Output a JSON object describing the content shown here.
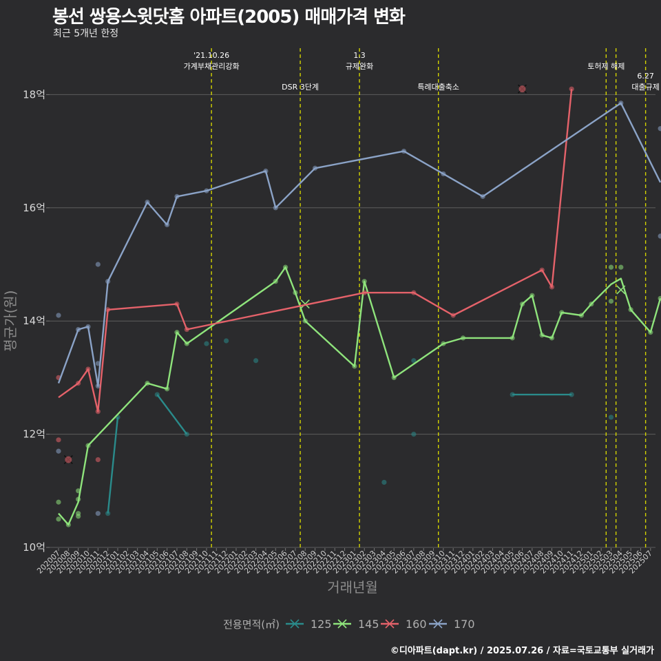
{
  "title": "봉선 쌍용스윗닷홈 아파트(2005) 매매가격 변화",
  "subtitle": "최근 5개년 한정",
  "caption": "©디아파트(dapt.kr) / 2025.07.26 / 자료=국토교통부 실거래가",
  "chart_data": {
    "type": "line",
    "xlabel": "거래년월",
    "ylabel": "평균가(원)",
    "ylim": [
      10,
      18.8
    ],
    "y_unit": "억",
    "y_ticks": [
      {
        "value": 10,
        "label": "10억"
      },
      {
        "value": 12,
        "label": "12억"
      },
      {
        "value": 14,
        "label": "14억"
      },
      {
        "value": 16,
        "label": "16억"
      },
      {
        "value": 18,
        "label": "18억"
      }
    ],
    "x_categories": [
      "202007",
      "202008",
      "202009",
      "202010",
      "202011",
      "202012",
      "202101",
      "202102",
      "202103",
      "202104",
      "202105",
      "202106",
      "202107",
      "202108",
      "202109",
      "202110",
      "202111",
      "202112",
      "202201",
      "202202",
      "202203",
      "202204",
      "202205",
      "202206",
      "202207",
      "202208",
      "202209",
      "202210",
      "202211",
      "202212",
      "202301",
      "202302",
      "202303",
      "202304",
      "202305",
      "202306",
      "202307",
      "202308",
      "202309",
      "202310",
      "202311",
      "202312",
      "202401",
      "202402",
      "202403",
      "202404",
      "202405",
      "202406",
      "202407",
      "202408",
      "202409",
      "202410",
      "202411",
      "202412",
      "202501",
      "202502",
      "202503",
      "202504",
      "202505",
      "202506",
      "202507"
    ],
    "grid": true,
    "legend": {
      "title": "전용면적(㎡)",
      "position": "bottom"
    },
    "events": [
      {
        "x": 15.5,
        "label": "'21.10.26\n가계부채관리강화",
        "row": 0
      },
      {
        "x": 24.5,
        "label": "DSR 3단계",
        "row": 2
      },
      {
        "x": 30.5,
        "label": "1.3\n규제완화",
        "row": 0
      },
      {
        "x": 38.5,
        "label": "특례대출축소",
        "row": 2
      },
      {
        "x": 55.5,
        "label": "토허제 해제",
        "row": 1
      },
      {
        "x": 56.5,
        "label": "",
        "row": 1
      },
      {
        "x": 59.5,
        "label": "6.27\n대출규제",
        "row": 3
      }
    ],
    "series": [
      {
        "name": "125",
        "color": "#2a8b8b",
        "line": [
          [
            5.0,
            10.6
          ],
          [
            6.0,
            12.3
          ]
        ],
        "line2": [
          [
            10.0,
            12.7
          ],
          [
            13.0,
            12.0
          ]
        ],
        "line3": [
          [
            46.0,
            12.7
          ],
          [
            52.0,
            12.7
          ]
        ],
        "points": [
          [
            5.0,
            10.6
          ],
          [
            6.0,
            12.3
          ],
          [
            10.0,
            12.7
          ],
          [
            13.0,
            12.0
          ],
          [
            15.0,
            13.6
          ],
          [
            17.0,
            13.65
          ],
          [
            20.0,
            13.3
          ],
          [
            33.0,
            11.15
          ],
          [
            36.0,
            13.3
          ],
          [
            36.0,
            12.0
          ],
          [
            46.0,
            12.7
          ],
          [
            52.0,
            12.7
          ],
          [
            56.0,
            12.3
          ]
        ],
        "crosses": []
      },
      {
        "name": "145",
        "color": "#8fe47c",
        "line": [
          [
            0.0,
            10.6
          ],
          [
            1.0,
            10.4
          ],
          [
            2.0,
            10.8
          ],
          [
            3.0,
            11.8
          ],
          [
            9.0,
            12.9
          ],
          [
            11.0,
            12.8
          ],
          [
            12.0,
            13.8
          ],
          [
            13.0,
            13.6
          ],
          [
            22.0,
            14.7
          ],
          [
            23.0,
            14.95
          ],
          [
            24.0,
            14.5
          ],
          [
            25.0,
            14.0
          ],
          [
            30.0,
            13.2
          ],
          [
            31.0,
            14.7
          ],
          [
            34.0,
            13.0
          ],
          [
            39.0,
            13.6
          ],
          [
            41.0,
            13.7
          ],
          [
            46.0,
            13.7
          ],
          [
            47.0,
            14.3
          ],
          [
            48.0,
            14.45
          ],
          [
            49.0,
            13.75
          ],
          [
            50.0,
            13.7
          ],
          [
            51.0,
            14.15
          ],
          [
            53.0,
            14.1
          ],
          [
            54.0,
            14.3
          ],
          [
            56.0,
            14.65
          ],
          [
            57.0,
            14.75
          ],
          [
            58.0,
            14.2
          ],
          [
            60.0,
            13.8
          ],
          [
            61.0,
            14.4
          ]
        ],
        "points": [
          [
            0.0,
            10.8
          ],
          [
            0.0,
            10.5
          ],
          [
            1.0,
            10.4
          ],
          [
            2.0,
            10.6
          ],
          [
            2.0,
            10.85
          ],
          [
            2.0,
            11.0
          ],
          [
            2.0,
            10.55
          ],
          [
            3.0,
            11.8
          ],
          [
            9.0,
            12.9
          ],
          [
            11.0,
            12.8
          ],
          [
            12.0,
            13.8
          ],
          [
            13.0,
            13.6
          ],
          [
            22.0,
            14.7
          ],
          [
            23.0,
            14.95
          ],
          [
            24.0,
            14.5
          ],
          [
            25.0,
            14.0
          ],
          [
            30.0,
            13.2
          ],
          [
            31.0,
            14.7
          ],
          [
            34.0,
            13.0
          ],
          [
            39.0,
            13.6
          ],
          [
            41.0,
            13.7
          ],
          [
            46.0,
            13.7
          ],
          [
            47.0,
            14.3
          ],
          [
            48.0,
            14.45
          ],
          [
            49.0,
            13.75
          ],
          [
            50.0,
            13.7
          ],
          [
            51.0,
            14.15
          ],
          [
            53.0,
            14.1
          ],
          [
            54.0,
            14.3
          ],
          [
            56.0,
            14.95
          ],
          [
            56.0,
            14.35
          ],
          [
            57.0,
            14.95
          ],
          [
            58.0,
            14.2
          ],
          [
            60.0,
            13.8
          ],
          [
            61.0,
            14.4
          ]
        ],
        "crosses": [
          [
            25.0,
            14.3
          ],
          [
            57.0,
            14.55
          ]
        ]
      },
      {
        "name": "160",
        "color": "#e5626a",
        "line": [
          [
            0.0,
            12.65
          ],
          [
            2.0,
            12.9
          ],
          [
            3.0,
            13.15
          ],
          [
            4.0,
            12.4
          ],
          [
            5.0,
            14.2
          ],
          [
            12.0,
            14.3
          ],
          [
            13.0,
            13.85
          ],
          [
            31.0,
            14.5
          ],
          [
            36.0,
            14.5
          ],
          [
            40.0,
            14.1
          ],
          [
            49.0,
            14.9
          ],
          [
            50.0,
            14.6
          ],
          [
            52.0,
            18.1
          ]
        ],
        "points": [
          [
            0.0,
            13.0
          ],
          [
            0.0,
            11.9
          ],
          [
            2.0,
            12.9
          ],
          [
            3.0,
            13.15
          ],
          [
            4.0,
            12.4
          ],
          [
            4.0,
            11.55
          ],
          [
            5.0,
            14.2
          ],
          [
            12.0,
            14.3
          ],
          [
            13.0,
            13.85
          ],
          [
            31.0,
            14.5
          ],
          [
            36.0,
            14.5
          ],
          [
            40.0,
            14.1
          ],
          [
            49.0,
            14.9
          ],
          [
            50.0,
            14.6
          ],
          [
            52.0,
            18.1
          ]
        ],
        "crosses": [
          [
            1.0,
            11.55
          ],
          [
            47.0,
            18.1
          ]
        ]
      },
      {
        "name": "170",
        "color": "#8ba3c7",
        "line": [
          [
            0.0,
            12.9
          ],
          [
            2.0,
            13.85
          ],
          [
            3.0,
            13.9
          ],
          [
            4.0,
            12.85
          ],
          [
            5.0,
            14.7
          ],
          [
            9.0,
            16.1
          ],
          [
            11.0,
            15.7
          ],
          [
            12.0,
            16.2
          ],
          [
            15.0,
            16.3
          ],
          [
            21.0,
            16.65
          ],
          [
            22.0,
            16.0
          ],
          [
            26.0,
            16.7
          ],
          [
            35.0,
            17.0
          ],
          [
            39.0,
            16.6
          ],
          [
            43.0,
            16.2
          ],
          [
            57.0,
            17.85
          ],
          [
            61.0,
            16.45
          ]
        ],
        "points": [
          [
            0.0,
            14.1
          ],
          [
            0.0,
            11.7
          ],
          [
            2.0,
            13.85
          ],
          [
            3.0,
            13.9
          ],
          [
            4.0,
            15.0
          ],
          [
            4.0,
            12.85
          ],
          [
            4.0,
            13.25
          ],
          [
            4.0,
            10.6
          ],
          [
            5.0,
            14.7
          ],
          [
            9.0,
            16.1
          ],
          [
            11.0,
            15.7
          ],
          [
            12.0,
            16.2
          ],
          [
            15.0,
            16.3
          ],
          [
            21.0,
            16.65
          ],
          [
            22.0,
            16.0
          ],
          [
            26.0,
            16.7
          ],
          [
            35.0,
            17.0
          ],
          [
            39.0,
            16.6
          ],
          [
            43.0,
            16.2
          ],
          [
            57.0,
            17.85
          ],
          [
            61.0,
            17.4
          ],
          [
            61.0,
            15.5
          ]
        ],
        "crosses": []
      }
    ]
  }
}
